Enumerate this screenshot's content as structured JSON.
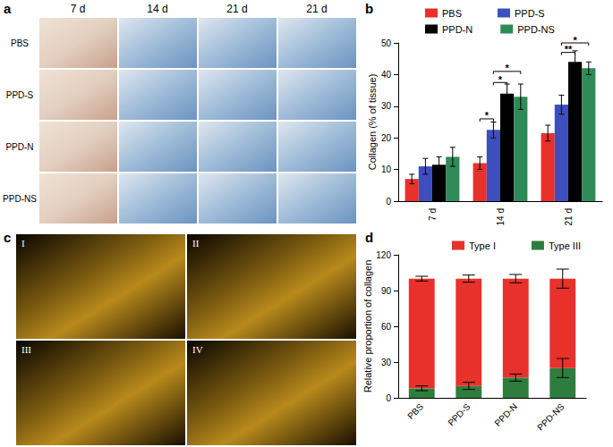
{
  "figure": {
    "panel_a": {
      "label": "a",
      "columns": [
        "7 d",
        "14 d",
        "21 d",
        "21 d"
      ],
      "rows": [
        "PBS",
        "PPD-S",
        "PPD-N",
        "PPD-NS"
      ]
    },
    "panel_c": {
      "label": "c",
      "images": [
        "I",
        "II",
        "III",
        "IV"
      ]
    }
  },
  "chart_data": [
    {
      "type": "bar",
      "panel_label": "b",
      "ylabel": "Collagen (% of tissue)",
      "categories": [
        "7 d",
        "14 d",
        "21 d"
      ],
      "series": [
        {
          "name": "PBS",
          "color": "#e8312b",
          "values": [
            7,
            12,
            21.5
          ],
          "errors": [
            1.5,
            2,
            2.5
          ]
        },
        {
          "name": "PPD-S",
          "color": "#3d4fbf",
          "values": [
            11,
            22.5,
            30.5
          ],
          "errors": [
            2.5,
            2.5,
            3
          ]
        },
        {
          "name": "PPD-N",
          "color": "#000000",
          "values": [
            11.5,
            34,
            44
          ],
          "errors": [
            2.5,
            3,
            3.5
          ]
        },
        {
          "name": "PPD-NS",
          "color": "#2e8b57",
          "values": [
            14,
            33,
            42
          ],
          "errors": [
            3,
            4,
            2
          ]
        }
      ],
      "annotations": [
        {
          "text": "*",
          "category": "14 d",
          "from": "PBS",
          "to": "PPD-S",
          "y": 26
        },
        {
          "text": "*",
          "category": "14 d",
          "from": "PPD-S",
          "to": "PPD-N",
          "y": 37.5
        },
        {
          "text": "*",
          "category": "14 d",
          "from": "PPD-S",
          "to": "PPD-NS",
          "y": 41
        },
        {
          "text": "**",
          "category": "21 d",
          "from": "PPD-S",
          "to": "PPD-N",
          "y": 47
        },
        {
          "text": "*",
          "category": "21 d",
          "from": "PPD-S",
          "to": "PPD-NS",
          "y": 50
        }
      ],
      "ylim": [
        0,
        50
      ],
      "yticks": [
        0,
        10,
        20,
        30,
        40,
        50
      ],
      "grid": false,
      "legend": "top"
    },
    {
      "type": "bar",
      "panel_label": "d",
      "ylabel": "Relative proportion of collagen",
      "categories": [
        "PBS",
        "PPD-S",
        "PPD-N",
        "PPD-NS"
      ],
      "series": [
        {
          "name": "Type I",
          "color": "#e8312b",
          "values": [
            92,
            90,
            83,
            75
          ],
          "errors": [
            2,
            3,
            3.5,
            8
          ]
        },
        {
          "name": "Type III",
          "color": "#2e7d3e",
          "values": [
            8,
            10,
            17,
            25
          ],
          "errors": [
            2,
            3,
            3,
            8
          ]
        }
      ],
      "stacked": true,
      "ylim": [
        0,
        120
      ],
      "yticks": [
        0,
        30,
        60,
        90,
        120
      ],
      "grid": false,
      "legend": "top"
    }
  ]
}
